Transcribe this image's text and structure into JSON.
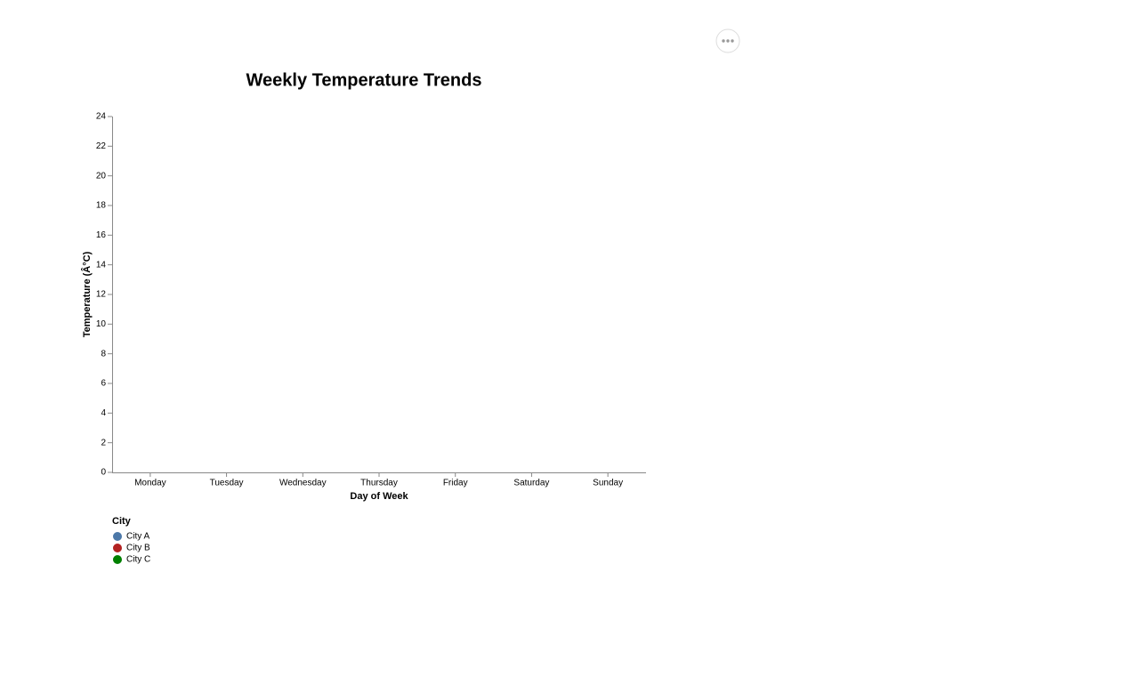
{
  "chart_data": {
    "type": "line",
    "title": "Weekly Temperature Trends",
    "x_label": "Day of Week",
    "y_label": "Temperature (Â°C)",
    "categories": [
      "Monday",
      "Tuesday",
      "Wednesday",
      "Thursday",
      "Friday",
      "Saturday",
      "Sunday"
    ],
    "series": [
      {
        "name": "City A",
        "color": "#4c78a8",
        "values": [
          null,
          null,
          null,
          null,
          null,
          null,
          null
        ]
      },
      {
        "name": "City B",
        "color": "#b22222",
        "values": [
          null,
          null,
          null,
          null,
          null,
          null,
          null
        ]
      },
      {
        "name": "City C",
        "color": "#008000",
        "values": [
          null,
          null,
          null,
          null,
          null,
          null,
          null
        ]
      }
    ],
    "legend_title": "City",
    "ylim": [
      0,
      24
    ],
    "yticks": [
      0,
      2,
      4,
      6,
      8,
      10,
      12,
      14,
      16,
      18,
      20,
      22,
      24
    ],
    "grid": false
  }
}
